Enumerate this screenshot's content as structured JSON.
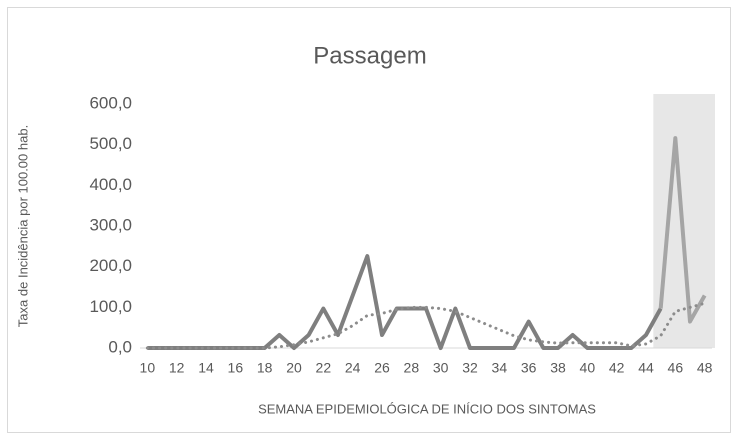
{
  "chart_data": {
    "type": "line",
    "title": "Passagem",
    "x_label": "SEMANA EPIDEMIOLÓGICA DE INÍCIO DOS SINTOMAS",
    "y_label": "Taxa de Incidência por 100.00 hab.",
    "x": [
      10,
      11,
      12,
      13,
      14,
      15,
      16,
      17,
      18,
      19,
      20,
      21,
      22,
      23,
      24,
      25,
      26,
      27,
      28,
      29,
      30,
      31,
      32,
      33,
      34,
      35,
      36,
      37,
      38,
      39,
      40,
      41,
      42,
      43,
      44,
      45,
      46,
      47,
      48
    ],
    "xlim": [
      9.5,
      48.5
    ],
    "xticks": [
      10,
      12,
      14,
      16,
      18,
      20,
      22,
      24,
      26,
      28,
      30,
      32,
      34,
      36,
      38,
      40,
      42,
      44,
      46,
      48
    ],
    "ylim": [
      0,
      600
    ],
    "yticks": [
      {
        "value": 0,
        "label": "0,0"
      },
      {
        "value": 100,
        "label": "100,0"
      },
      {
        "value": 200,
        "label": "200,0"
      },
      {
        "value": 300,
        "label": "300,0"
      },
      {
        "value": 400,
        "label": "400,0"
      },
      {
        "value": 500,
        "label": "500,0"
      },
      {
        "value": 600,
        "label": "600,0"
      }
    ],
    "grid": false,
    "series": [
      {
        "color": "#7f7f7f",
        "style": "solid",
        "values": [
          0,
          0,
          0,
          0,
          0,
          0,
          0,
          0,
          0,
          32,
          0,
          32,
          97,
          32,
          129,
          226,
          32,
          97,
          97,
          97,
          0,
          97,
          0,
          0,
          0,
          0,
          65,
          0,
          0,
          32,
          0,
          0,
          0,
          0,
          32,
          97,
          null,
          null,
          null
        ]
      },
      {
        "color": "#a5a5a5",
        "style": "solid",
        "highlight": true,
        "values": [
          null,
          null,
          null,
          null,
          null,
          null,
          null,
          null,
          null,
          null,
          null,
          null,
          null,
          null,
          null,
          null,
          null,
          null,
          null,
          null,
          null,
          null,
          null,
          null,
          null,
          null,
          null,
          null,
          null,
          null,
          null,
          null,
          null,
          null,
          null,
          97,
          516,
          65,
          129
        ]
      },
      {
        "color": "#8c8c8c",
        "style": "dotted",
        "values": [
          0,
          0,
          0,
          0,
          0,
          0,
          0,
          0,
          0,
          3,
          8,
          15,
          25,
          35,
          55,
          80,
          85,
          95,
          100,
          100,
          97,
          90,
          75,
          60,
          45,
          30,
          20,
          15,
          12,
          13,
          13,
          13,
          13,
          5,
          10,
          30,
          90,
          100,
          110
        ]
      }
    ]
  }
}
